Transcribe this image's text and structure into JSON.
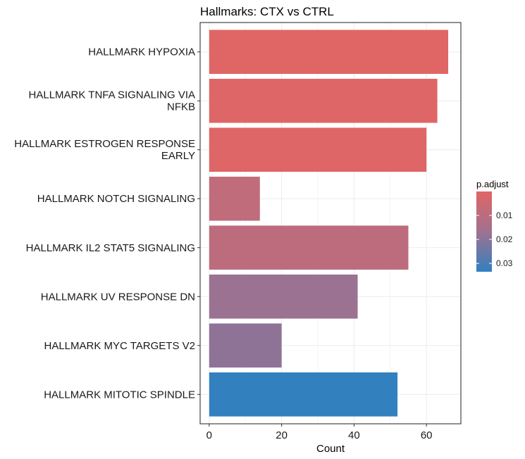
{
  "chart_data": {
    "type": "bar",
    "orientation": "horizontal",
    "title": "Hallmarks: CTX vs CTRL",
    "xlabel": "Count",
    "ylabel": "",
    "xlim": [
      -2.5,
      69.5
    ],
    "xticks": [
      0,
      20,
      40,
      60
    ],
    "grid": true,
    "categories": [
      [
        "HALLMARK HYPOXIA"
      ],
      [
        "HALLMARK TNFA SIGNALING VIA",
        "NFKB"
      ],
      [
        "HALLMARK ESTROGEN RESPONSE",
        "EARLY"
      ],
      [
        "HALLMARK NOTCH SIGNALING"
      ],
      [
        "HALLMARK IL2 STAT5 SIGNALING"
      ],
      [
        "HALLMARK UV RESPONSE DN"
      ],
      [
        "HALLMARK MYC TARGETS V2"
      ],
      [
        "HALLMARK MITOTIC SPINDLE"
      ]
    ],
    "values": [
      66,
      63,
      60,
      14,
      55,
      41,
      20,
      52
    ],
    "p_adjust": [
      0.0001,
      0.0002,
      0.0004,
      0.0085,
      0.0093,
      0.0175,
      0.0195,
      0.0335
    ],
    "legend": {
      "title": "p.adjust",
      "ticks": [
        "0.01",
        "0.02",
        "0.03"
      ],
      "tick_values": [
        0.01,
        0.02,
        0.03
      ],
      "range": [
        0.0,
        0.0335
      ],
      "placement": "right",
      "low_color": "#E06666",
      "high_color": "#3380BF"
    }
  }
}
